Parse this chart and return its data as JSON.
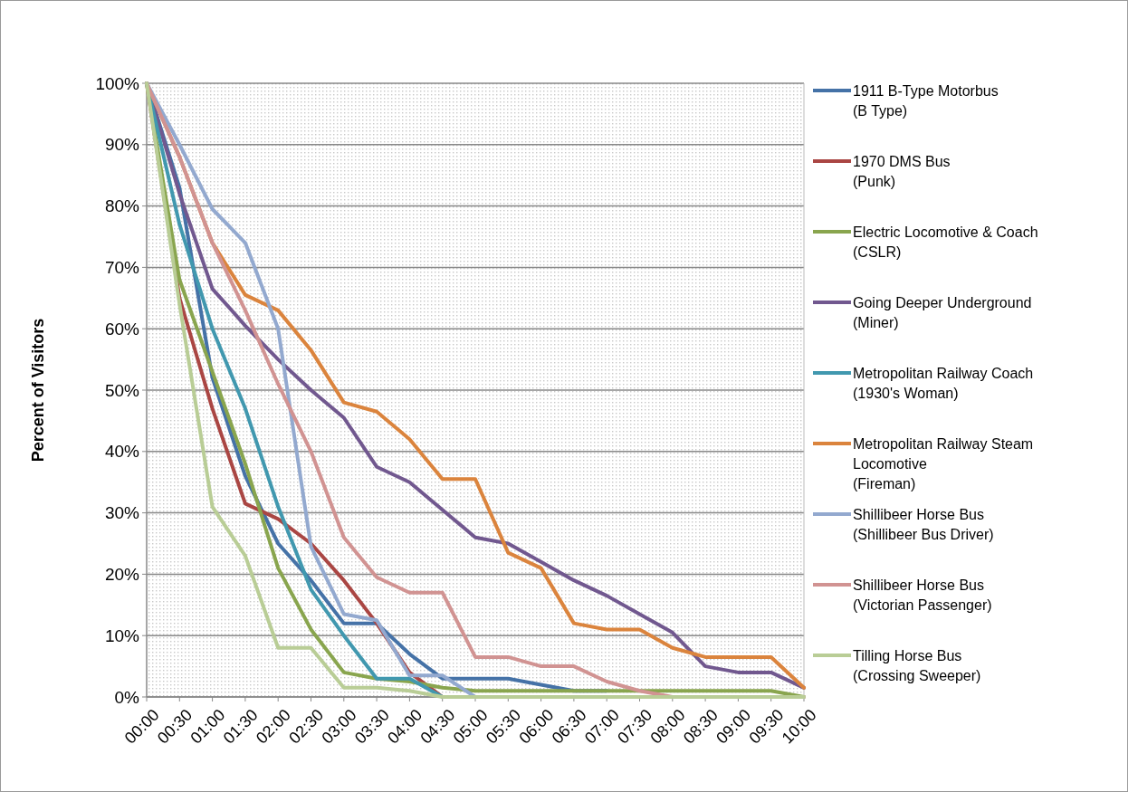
{
  "chart_data": {
    "type": "line",
    "ylabel": "Percent of Visitors",
    "categories": [
      "00:00",
      "00:30",
      "01:00",
      "01:30",
      "02:00",
      "02:30",
      "03:00",
      "03:30",
      "04:00",
      "04:30",
      "05:00",
      "05:30",
      "06:00",
      "06:30",
      "07:00",
      "07:30",
      "08:00",
      "08:30",
      "09:00",
      "09:30",
      "10:00"
    ],
    "series": [
      {
        "name": "1911 B-Type Motorbus\n(B Type)",
        "color": "#4572a7",
        "values": [
          100,
          83,
          52,
          36,
          25,
          19,
          12,
          12,
          7,
          3,
          3,
          3,
          2,
          1,
          1,
          null,
          null,
          null,
          null,
          null,
          null
        ]
      },
      {
        "name": "1970 DMS Bus\n(Punk)",
        "color": "#aa4643",
        "values": [
          100,
          65,
          47,
          31.5,
          29,
          25,
          19,
          12,
          4,
          0,
          0,
          0,
          0,
          0,
          0,
          0,
          0,
          0,
          null,
          null,
          null
        ]
      },
      {
        "name": "Electric Locomotive & Coach\n(CSLR)",
        "color": "#89a54e",
        "values": [
          100,
          68,
          53,
          38,
          21,
          11,
          4,
          3,
          2.5,
          1.5,
          1,
          1,
          1,
          1,
          1,
          1,
          1,
          1,
          1,
          1,
          0
        ]
      },
      {
        "name": "Going Deeper Underground\n(Miner)",
        "color": "#71588f",
        "values": [
          100,
          82,
          66.5,
          60.5,
          55,
          50,
          45.5,
          37.5,
          35,
          30.5,
          26,
          25,
          22,
          19,
          16.5,
          13.5,
          10.5,
          5,
          4,
          4,
          1.5
        ]
      },
      {
        "name": "Metropolitan Railway Coach\n(1930's Woman)",
        "color": "#4198af",
        "values": [
          100,
          77,
          60,
          47,
          31,
          17.5,
          10,
          3,
          3,
          0,
          0,
          0,
          null,
          null,
          null,
          null,
          null,
          null,
          null,
          null,
          null
        ]
      },
      {
        "name": "Metropolitan Railway Steam\nLocomotive\n(Fireman)",
        "color": "#db843d",
        "values": [
          100,
          88,
          74,
          65.5,
          63,
          56.5,
          48,
          46.5,
          42,
          35.5,
          35.5,
          23.5,
          21,
          12,
          11,
          11,
          8,
          6.5,
          6.5,
          6.5,
          1.5
        ]
      },
      {
        "name": "Shillibeer Horse Bus\n(Shillibeer Bus Driver)",
        "color": "#93a9cf",
        "values": [
          100,
          90,
          79.5,
          74,
          60,
          24.5,
          13.5,
          12.5,
          3.5,
          3.5,
          0,
          0,
          0,
          0,
          0,
          0,
          0,
          0,
          0,
          null,
          null
        ]
      },
      {
        "name": "Shillibeer Horse Bus\n(Victorian Passenger)",
        "color": "#d19392",
        "values": [
          100,
          88,
          74,
          63,
          51,
          40,
          26,
          19.5,
          17,
          17,
          6.5,
          6.5,
          5,
          5,
          2.5,
          1,
          0,
          0,
          0,
          0,
          0
        ]
      },
      {
        "name": "Tilling Horse Bus\n(Crossing Sweeper)",
        "color": "#b9cd96",
        "values": [
          100,
          64,
          31,
          23,
          8,
          8,
          1.5,
          1.5,
          1,
          0,
          0,
          0,
          0,
          0,
          0,
          0,
          0,
          0,
          0,
          0,
          0
        ]
      }
    ],
    "ylim": [
      0,
      100
    ],
    "yticks": [
      {
        "value": 0,
        "label": "0%"
      },
      {
        "value": 10,
        "label": "10%"
      },
      {
        "value": 20,
        "label": "20%"
      },
      {
        "value": 30,
        "label": "30%"
      },
      {
        "value": 40,
        "label": "40%"
      },
      {
        "value": 50,
        "label": "50%"
      },
      {
        "value": 60,
        "label": "60%"
      },
      {
        "value": 70,
        "label": "70%"
      },
      {
        "value": 80,
        "label": "80%"
      },
      {
        "value": 90,
        "label": "90%"
      },
      {
        "value": 100,
        "label": "100%"
      }
    ],
    "grid": "y",
    "legend": "right",
    "marker": "none",
    "line_style": "solid"
  }
}
